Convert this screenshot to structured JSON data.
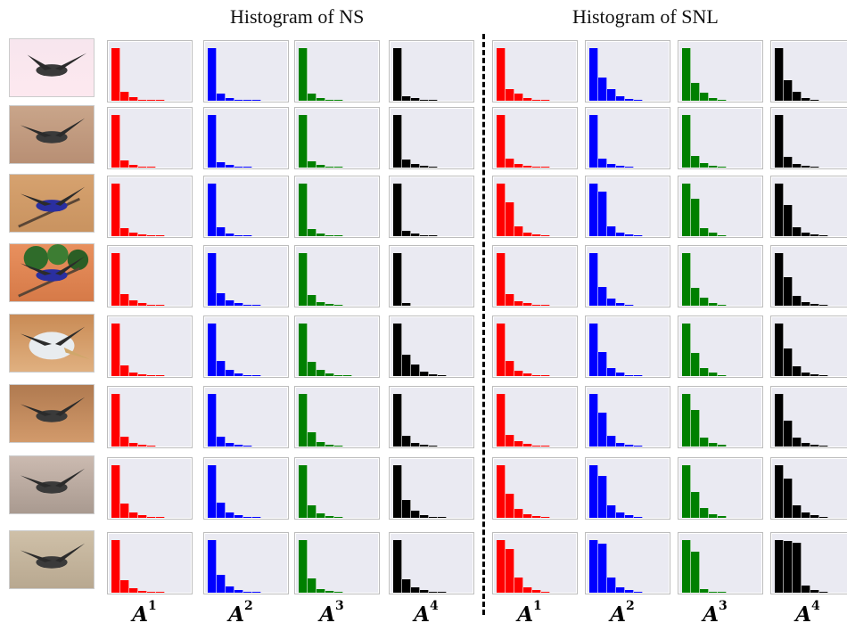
{
  "titles": {
    "left": "Histogram of NS",
    "right": "Histogram of SNL"
  },
  "columns": [
    {
      "base": "A",
      "sup": "1",
      "color": "#ff0000",
      "edge": "#e60000"
    },
    {
      "base": "A",
      "sup": "2",
      "color": "#0000ff",
      "edge": "#0000d0"
    },
    {
      "base": "A",
      "sup": "3",
      "color": "#008000",
      "edge": "#006800"
    },
    {
      "base": "A",
      "sup": "4",
      "color": "#000000",
      "edge": "#000000"
    }
  ],
  "image_icons": [
    "bird-photo-icon",
    "bird-photo-icon",
    "bird-photo-icon",
    "bird-photo-icon",
    "bird-photo-icon",
    "bird-photo-icon",
    "bird-photo-icon",
    "bird-photo-icon"
  ],
  "chart_data": {
    "type": "bar",
    "groups": [
      {
        "name": "NS",
        "rows": [
          [
            [
              0.92,
              0.15,
              0.06,
              0.02,
              0.01,
              0.005,
              0,
              0
            ],
            [
              0.92,
              0.13,
              0.05,
              0.02,
              0.01,
              0.005,
              0,
              0
            ],
            [
              0.92,
              0.12,
              0.05,
              0.02,
              0.01,
              0,
              0,
              0
            ],
            [
              0.92,
              0.08,
              0.04,
              0.02,
              0.01,
              0,
              0,
              0
            ]
          ],
          [
            [
              0.92,
              0.12,
              0.05,
              0.02,
              0.01,
              0,
              0,
              0
            ],
            [
              0.92,
              0.1,
              0.04,
              0.02,
              0.01,
              0,
              0,
              0
            ],
            [
              0.92,
              0.11,
              0.05,
              0.02,
              0.01,
              0,
              0,
              0
            ],
            [
              0.92,
              0.14,
              0.06,
              0.03,
              0.01,
              0,
              0,
              0
            ]
          ],
          [
            [
              0.92,
              0.14,
              0.06,
              0.03,
              0.01,
              0.005,
              0,
              0
            ],
            [
              0.92,
              0.16,
              0.05,
              0.02,
              0.01,
              0,
              0,
              0
            ],
            [
              0.92,
              0.13,
              0.05,
              0.02,
              0.01,
              0,
              0,
              0
            ],
            [
              0.92,
              0.1,
              0.04,
              0.02,
              0.01,
              0,
              0,
              0
            ]
          ],
          [
            [
              0.92,
              0.2,
              0.09,
              0.04,
              0.02,
              0.01,
              0,
              0
            ],
            [
              0.92,
              0.22,
              0.1,
              0.04,
              0.02,
              0.01,
              0,
              0
            ],
            [
              0.92,
              0.18,
              0.06,
              0.03,
              0.01,
              0,
              0,
              0
            ],
            [
              0.92,
              0.05,
              0,
              0,
              0,
              0,
              0,
              0
            ]
          ],
          [
            [
              0.92,
              0.18,
              0.07,
              0.03,
              0.01,
              0.005,
              0,
              0
            ],
            [
              0.92,
              0.27,
              0.11,
              0.05,
              0.02,
              0.01,
              0,
              0
            ],
            [
              0.92,
              0.25,
              0.11,
              0.05,
              0.02,
              0.01,
              0,
              0
            ],
            [
              0.92,
              0.38,
              0.2,
              0.08,
              0.03,
              0.01,
              0,
              0
            ]
          ],
          [
            [
              0.92,
              0.17,
              0.07,
              0.03,
              0.01,
              0,
              0,
              0
            ],
            [
              0.92,
              0.17,
              0.07,
              0.03,
              0.01,
              0,
              0,
              0
            ],
            [
              0.92,
              0.25,
              0.08,
              0.03,
              0.01,
              0,
              0,
              0
            ],
            [
              0.92,
              0.18,
              0.06,
              0.03,
              0.01,
              0,
              0,
              0
            ]
          ],
          [
            [
              0.92,
              0.25,
              0.09,
              0.04,
              0.02,
              0.005,
              0,
              0
            ],
            [
              0.92,
              0.27,
              0.09,
              0.04,
              0.02,
              0.01,
              0,
              0
            ],
            [
              0.92,
              0.22,
              0.08,
              0.03,
              0.01,
              0,
              0,
              0
            ],
            [
              0.92,
              0.32,
              0.12,
              0.05,
              0.02,
              0.01,
              0,
              0
            ]
          ],
          [
            [
              0.92,
              0.22,
              0.08,
              0.03,
              0.01,
              0.005,
              0,
              0
            ],
            [
              0.92,
              0.31,
              0.11,
              0.04,
              0.02,
              0.01,
              0,
              0
            ],
            [
              0.92,
              0.25,
              0.06,
              0.03,
              0.01,
              0,
              0,
              0
            ],
            [
              0.92,
              0.24,
              0.09,
              0.04,
              0.02,
              0.01,
              0,
              0
            ]
          ]
        ]
      },
      {
        "name": "SNL",
        "rows": [
          [
            [
              0.92,
              0.2,
              0.12,
              0.05,
              0.02,
              0.01,
              0,
              0
            ],
            [
              0.92,
              0.4,
              0.2,
              0.08,
              0.03,
              0.01,
              0,
              0
            ],
            [
              0.92,
              0.32,
              0.14,
              0.05,
              0.02,
              0,
              0,
              0
            ],
            [
              0.92,
              0.36,
              0.16,
              0.05,
              0.02,
              0,
              0,
              0
            ]
          ],
          [
            [
              0.92,
              0.15,
              0.07,
              0.03,
              0.01,
              0.005,
              0,
              0
            ],
            [
              0.92,
              0.16,
              0.06,
              0.03,
              0.01,
              0,
              0,
              0
            ],
            [
              0.92,
              0.2,
              0.08,
              0.03,
              0.01,
              0,
              0,
              0
            ],
            [
              0.92,
              0.18,
              0.07,
              0.03,
              0.01,
              0,
              0,
              0
            ]
          ],
          [
            [
              0.92,
              0.6,
              0.17,
              0.07,
              0.03,
              0.01,
              0,
              0
            ],
            [
              0.92,
              0.78,
              0.17,
              0.07,
              0.03,
              0.01,
              0,
              0
            ],
            [
              0.92,
              0.65,
              0.14,
              0.06,
              0.02,
              0,
              0,
              0
            ],
            [
              0.92,
              0.54,
              0.16,
              0.07,
              0.03,
              0.01,
              0,
              0
            ]
          ],
          [
            [
              0.92,
              0.2,
              0.08,
              0.04,
              0.02,
              0.01,
              0,
              0
            ],
            [
              0.92,
              0.33,
              0.12,
              0.05,
              0.02,
              0,
              0,
              0
            ],
            [
              0.92,
              0.32,
              0.14,
              0.05,
              0.02,
              0,
              0,
              0
            ],
            [
              0.92,
              0.5,
              0.17,
              0.07,
              0.03,
              0.01,
              0,
              0
            ]
          ],
          [
            [
              0.92,
              0.26,
              0.1,
              0.04,
              0.02,
              0.005,
              0,
              0
            ],
            [
              0.92,
              0.42,
              0.14,
              0.06,
              0.02,
              0.01,
              0,
              0
            ],
            [
              0.92,
              0.41,
              0.14,
              0.06,
              0.02,
              0,
              0,
              0
            ],
            [
              0.92,
              0.48,
              0.17,
              0.07,
              0.03,
              0.01,
              0,
              0
            ]
          ],
          [
            [
              0.92,
              0.2,
              0.09,
              0.04,
              0.02,
              0.005,
              0,
              0
            ],
            [
              0.92,
              0.6,
              0.18,
              0.07,
              0.03,
              0.01,
              0,
              0
            ],
            [
              0.92,
              0.64,
              0.16,
              0.07,
              0.03,
              0,
              0,
              0
            ],
            [
              0.92,
              0.46,
              0.16,
              0.07,
              0.03,
              0.01,
              0,
              0
            ]
          ],
          [
            [
              0.92,
              0.42,
              0.16,
              0.07,
              0.03,
              0.01,
              0,
              0
            ],
            [
              0.92,
              0.73,
              0.22,
              0.09,
              0.04,
              0.01,
              0,
              0
            ],
            [
              0.92,
              0.46,
              0.17,
              0.07,
              0.03,
              0,
              0,
              0
            ],
            [
              0.92,
              0.68,
              0.22,
              0.09,
              0.04,
              0.01,
              0,
              0
            ]
          ],
          [
            [
              0.92,
              0.76,
              0.27,
              0.1,
              0.04,
              0.01,
              0,
              0
            ],
            [
              0.92,
              0.86,
              0.27,
              0.1,
              0.04,
              0.01,
              0,
              0
            ],
            [
              0.92,
              0.72,
              0.06,
              0.02,
              0.01,
              0,
              0,
              0
            ],
            [
              0.92,
              0.9,
              0.87,
              0.12,
              0.05,
              0.01,
              0,
              0
            ]
          ]
        ]
      }
    ]
  }
}
